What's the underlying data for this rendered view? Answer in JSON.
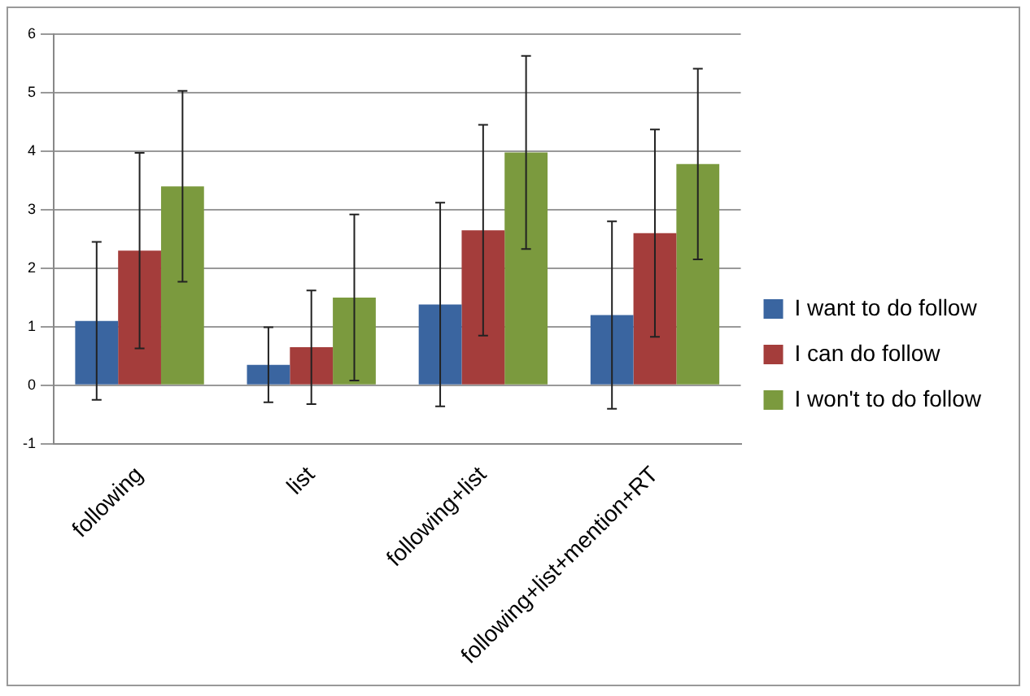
{
  "chart_data": {
    "type": "bar",
    "categories": [
      "following",
      "list",
      "following+list",
      "following+list+mention+RT"
    ],
    "series": [
      {
        "name": "I want to do follow",
        "color": "#3a65a0",
        "values": [
          1.1,
          0.35,
          1.38,
          1.2
        ],
        "errors": [
          1.35,
          0.64,
          1.74,
          1.6
        ]
      },
      {
        "name": "I can do follow",
        "color": "#a43d3b",
        "values": [
          2.3,
          0.65,
          2.65,
          2.6
        ],
        "errors": [
          1.67,
          0.97,
          1.8,
          1.77
        ]
      },
      {
        "name": "I won't to do follow",
        "color": "#7b9a3e",
        "values": [
          3.4,
          1.5,
          3.98,
          3.78
        ],
        "errors": [
          1.63,
          1.42,
          1.65,
          1.63
        ]
      }
    ],
    "ylim": [
      -1,
      6
    ],
    "yticks": [
      -1,
      0,
      1,
      2,
      3,
      4,
      5,
      6
    ],
    "grid": "y",
    "legend": "right"
  }
}
